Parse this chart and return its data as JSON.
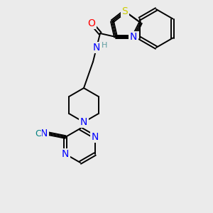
{
  "bg_color": "#ebebeb",
  "bond_color": "#000000",
  "atom_colors": {
    "N": "#0000ff",
    "O": "#ff0000",
    "S": "#cccc00",
    "C_teal": "#008080",
    "H": "#5f9ea0"
  }
}
